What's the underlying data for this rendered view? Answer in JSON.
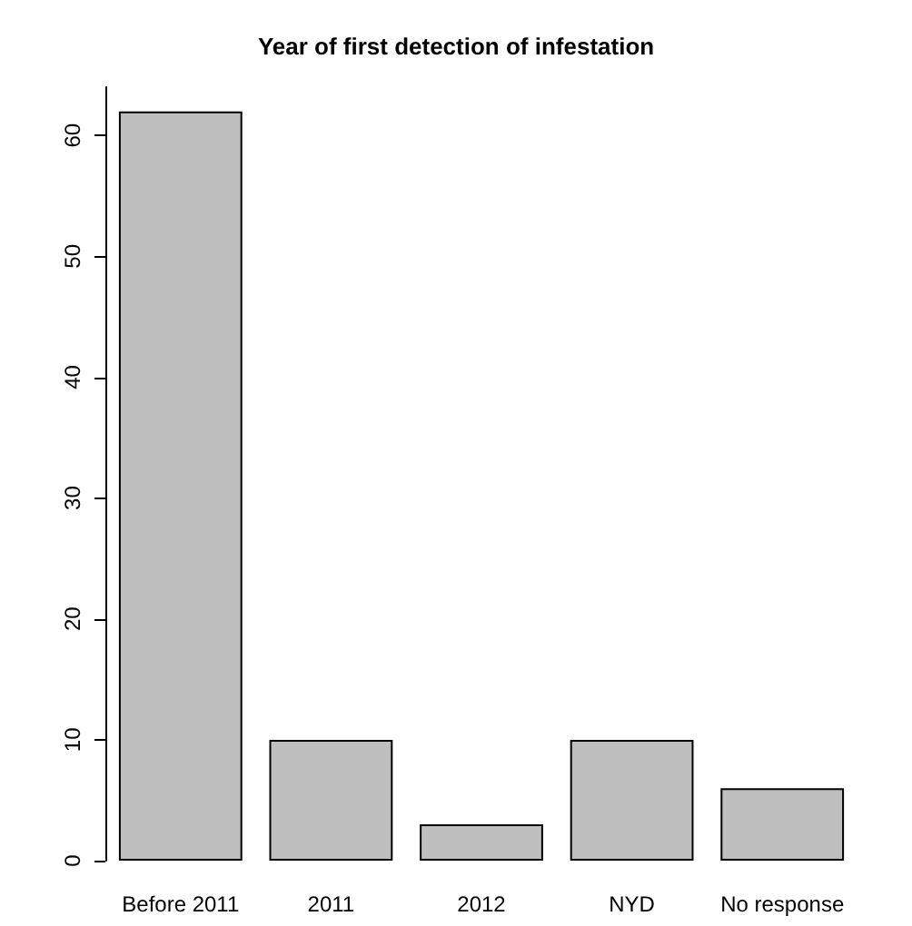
{
  "chart_data": {
    "type": "bar",
    "title": "Year of first detection of infestation",
    "categories": [
      "Before 2011",
      "2011",
      "2012",
      "NYD",
      "No response"
    ],
    "values": [
      62,
      10,
      3,
      10,
      6
    ],
    "color": "#bebebe",
    "ylim": [
      0,
      64
    ],
    "yticks": [
      0,
      10,
      20,
      30,
      40,
      50,
      60
    ],
    "grid": false
  }
}
